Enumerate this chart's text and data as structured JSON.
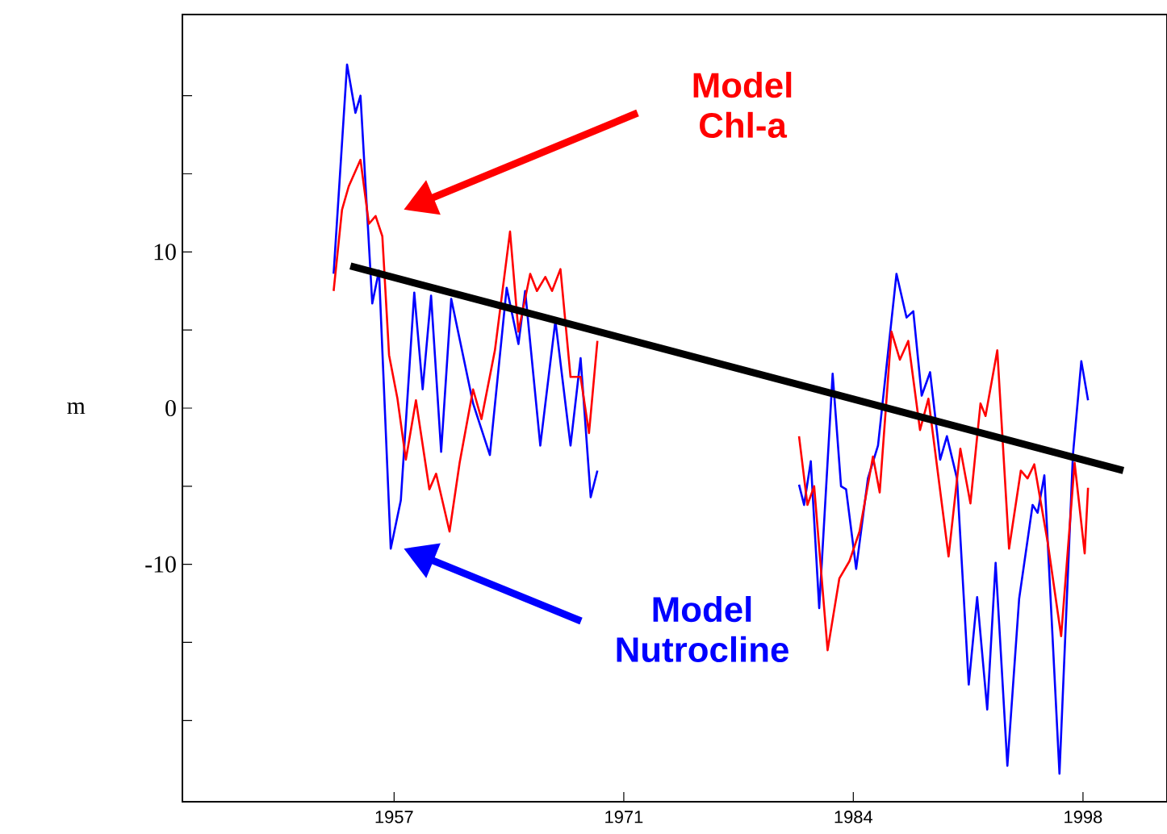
{
  "chart_data": {
    "type": "line",
    "ylabel": "m",
    "xlim": [
      1944.4,
      2003
    ],
    "ylim": [
      -25.2,
      25.2
    ],
    "xticks": [
      {
        "value": 1957,
        "label": "1957"
      },
      {
        "value": 1970.67,
        "label": "1971"
      },
      {
        "value": 1984.33,
        "label": "1984"
      },
      {
        "value": 1998,
        "label": "1998"
      }
    ],
    "yticks": [
      {
        "value": -20,
        "label": null
      },
      {
        "value": -15,
        "label": null
      },
      -10,
      {
        "value": -5,
        "label": null
      },
      0,
      {
        "value": 5,
        "label": null
      },
      10,
      {
        "value": 15,
        "label": null
      },
      {
        "value": 20,
        "label": null
      }
    ],
    "grid": false,
    "marker": "none",
    "line_style": "solid",
    "series": [
      {
        "color": "#0000ff",
        "x": [
          1953.4,
          1954.2,
          1954.7,
          1955.0,
          1955.7,
          1956.1,
          1956.8,
          1957.4,
          1958.2,
          1958.7,
          1959.2,
          1959.8,
          1960.4,
          1961.1,
          1961.7,
          1962.7,
          1963.7,
          1964.4,
          1964.8,
          1965.7,
          1966.6,
          1967.5,
          1968.1,
          1968.7,
          1969.1,
          1975.0,
          1981.1,
          1981.4,
          1981.8,
          1982.3,
          1983.1,
          1983.6,
          1983.9,
          1984.5,
          1985.2,
          1985.8,
          1986.9,
          1987.5,
          1987.9,
          1988.4,
          1988.9,
          1989.5,
          1989.9,
          1990.5,
          1991.2,
          1991.7,
          1992.3,
          1992.8,
          1993.5,
          1994.2,
          1995.0,
          1995.3,
          1995.7,
          1996.6,
          1997.4,
          1997.9,
          1998.3
        ],
        "values": [
          8.6,
          22.0,
          18.9,
          20.0,
          6.7,
          8.8,
          -9.0,
          -5.9,
          7.4,
          1.2,
          7.2,
          -2.8,
          7.0,
          3.4,
          0.3,
          -3.0,
          7.7,
          4.1,
          7.5,
          -2.4,
          5.6,
          -2.4,
          3.2,
          -5.7,
          -4.0,
          null,
          -4.9,
          -6.2,
          -3.4,
          -12.8,
          2.2,
          -5.0,
          -5.2,
          -10.3,
          -4.5,
          -2.4,
          8.6,
          5.8,
          6.2,
          0.8,
          2.3,
          -3.3,
          -1.8,
          -4.5,
          -17.7,
          -12.1,
          -19.3,
          -9.9,
          -22.9,
          -12.2,
          -6.2,
          -6.7,
          -4.3,
          -23.4,
          -3.0,
          3.0,
          0.5
        ]
      },
      {
        "color": "#ff0000",
        "x": [
          1953.4,
          1953.9,
          1954.3,
          1955.0,
          1955.5,
          1955.9,
          1956.3,
          1956.7,
          1957.2,
          1957.7,
          1958.3,
          1959.1,
          1959.5,
          1960.3,
          1960.9,
          1961.7,
          1962.2,
          1963.0,
          1963.9,
          1964.4,
          1965.1,
          1965.5,
          1966.0,
          1966.4,
          1966.9,
          1967.5,
          1968.1,
          1968.6,
          1969.1,
          1975.0,
          1981.1,
          1981.6,
          1982.0,
          1982.8,
          1983.5,
          1984.1,
          1984.7,
          1985.5,
          1985.9,
          1986.6,
          1987.1,
          1987.6,
          1988.3,
          1988.8,
          1990.0,
          1990.7,
          1991.3,
          1991.9,
          1992.2,
          1992.9,
          1993.6,
          1994.3,
          1994.7,
          1995.1,
          1995.9,
          1996.7,
          1997.5,
          1998.1,
          1998.3
        ],
        "values": [
          7.5,
          12.7,
          14.2,
          15.9,
          11.8,
          12.3,
          11.0,
          3.4,
          0.6,
          -3.3,
          0.5,
          -5.2,
          -4.2,
          -7.9,
          -3.5,
          1.2,
          -0.7,
          3.7,
          11.3,
          4.9,
          8.6,
          7.5,
          8.4,
          7.5,
          8.9,
          2.0,
          2.0,
          -1.6,
          4.3,
          null,
          -1.8,
          -6.2,
          -5.0,
          -15.5,
          -10.9,
          -9.8,
          -7.9,
          -3.1,
          -5.4,
          4.9,
          3.1,
          4.3,
          -1.4,
          0.6,
          -9.5,
          -2.6,
          -6.1,
          0.3,
          -0.5,
          3.7,
          -9.0,
          -4.0,
          -4.5,
          -3.6,
          -8.6,
          -14.6,
          -3.5,
          -9.3,
          -5.1
        ]
      },
      {
        "color": "#000000",
        "x": [
          1954.4,
          2000.4
        ],
        "values": [
          9.1,
          -4.0
        ]
      }
    ],
    "annotations": [
      "Model Chl-a",
      "Model Nutrocline"
    ]
  }
}
